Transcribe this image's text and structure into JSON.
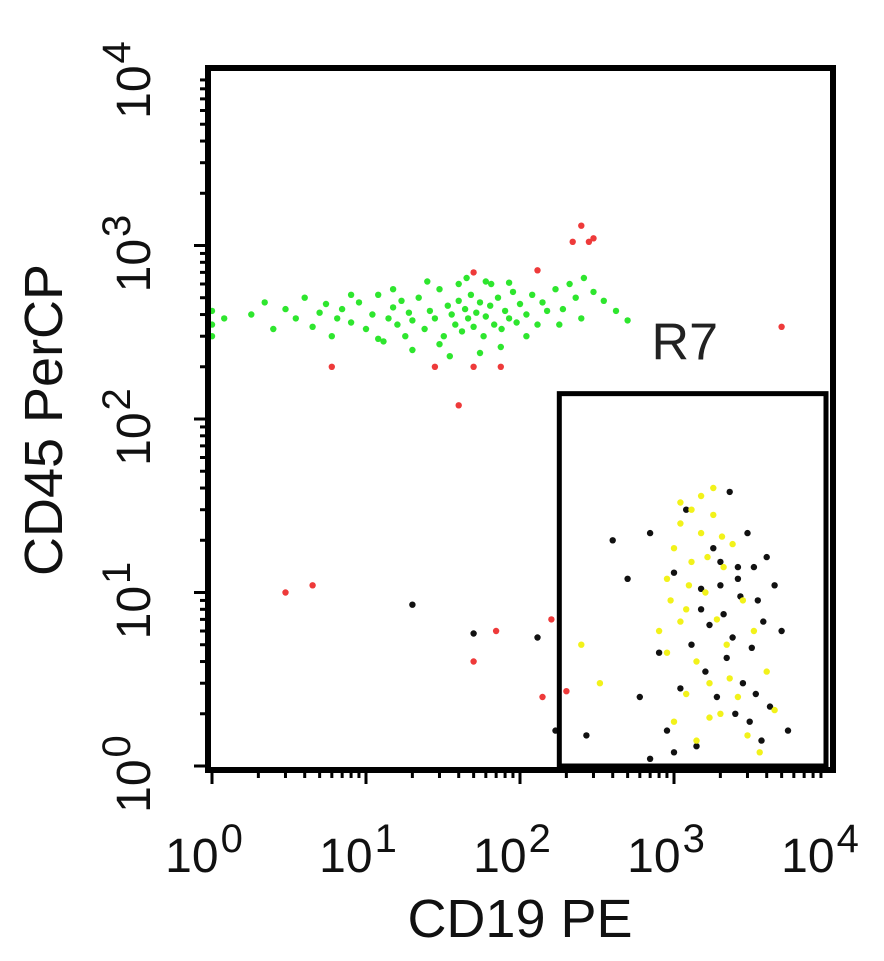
{
  "chart_data": {
    "type": "scatter",
    "xlabel": "CD19 PE",
    "ylabel": "CD45 PerCP",
    "x_scale": "log",
    "y_scale": "log",
    "xlim": [
      1,
      10000
    ],
    "ylim": [
      1,
      10000
    ],
    "x_tick_labels": [
      {
        "value": 1,
        "base": "10",
        "exp": "0"
      },
      {
        "value": 10,
        "base": "10",
        "exp": "1"
      },
      {
        "value": 100,
        "base": "10",
        "exp": "2"
      },
      {
        "value": 1000,
        "base": "10",
        "exp": "3"
      },
      {
        "value": 10000,
        "base": "10",
        "exp": "4"
      }
    ],
    "y_tick_labels": [
      {
        "value": 1,
        "base": "10",
        "exp": "0"
      },
      {
        "value": 10,
        "base": "10",
        "exp": "1"
      },
      {
        "value": 100,
        "base": "10",
        "exp": "2"
      },
      {
        "value": 1000,
        "base": "10",
        "exp": "3"
      },
      {
        "value": 10000,
        "base": "10",
        "exp": "4"
      }
    ],
    "grid": false,
    "gate": {
      "label": "R7",
      "x": [
        180,
        10000
      ],
      "y": [
        1,
        140
      ]
    },
    "gate_label_pos": {
      "x": 1300,
      "y": 280
    },
    "series": [
      {
        "color": "#2ee62e",
        "points": [
          [
            1,
            350
          ],
          [
            1,
            420
          ],
          [
            1,
            300
          ],
          [
            1.2,
            380
          ],
          [
            1.8,
            400
          ],
          [
            2.2,
            470
          ],
          [
            2.5,
            330
          ],
          [
            3,
            430
          ],
          [
            3.5,
            380
          ],
          [
            4,
            500
          ],
          [
            4.5,
            340
          ],
          [
            5,
            410
          ],
          [
            5.5,
            460
          ],
          [
            6,
            300
          ],
          [
            6.5,
            380
          ],
          [
            7,
            430
          ],
          [
            8,
            360
          ],
          [
            9,
            470
          ],
          [
            10,
            330
          ],
          [
            11,
            400
          ],
          [
            12,
            520
          ],
          [
            13,
            280
          ],
          [
            14,
            380
          ],
          [
            15,
            440
          ],
          [
            16,
            350
          ],
          [
            17,
            480
          ],
          [
            18,
            300
          ],
          [
            19,
            410
          ],
          [
            20,
            370
          ],
          [
            22,
            500
          ],
          [
            24,
            330
          ],
          [
            26,
            420
          ],
          [
            28,
            380
          ],
          [
            30,
            560
          ],
          [
            32,
            300
          ],
          [
            34,
            450
          ],
          [
            36,
            400
          ],
          [
            38,
            350
          ],
          [
            40,
            480
          ],
          [
            42,
            320
          ],
          [
            44,
            430
          ],
          [
            46,
            380
          ],
          [
            48,
            520
          ],
          [
            50,
            340
          ],
          [
            52,
            410
          ],
          [
            55,
            470
          ],
          [
            58,
            300
          ],
          [
            60,
            390
          ],
          [
            64,
            450
          ],
          [
            68,
            350
          ],
          [
            72,
            500
          ],
          [
            76,
            330
          ],
          [
            80,
            420
          ],
          [
            85,
            380
          ],
          [
            90,
            540
          ],
          [
            95,
            360
          ],
          [
            100,
            460
          ],
          [
            110,
            400
          ],
          [
            120,
            520
          ],
          [
            130,
            350
          ],
          [
            140,
            470
          ],
          [
            150,
            420
          ],
          [
            170,
            560
          ],
          [
            190,
            430
          ],
          [
            210,
            600
          ],
          [
            230,
            500
          ],
          [
            260,
            650
          ],
          [
            300,
            540
          ],
          [
            350,
            480
          ],
          [
            420,
            420
          ],
          [
            500,
            370
          ],
          [
            20,
            250
          ],
          [
            25,
            620
          ],
          [
            35,
            230
          ],
          [
            45,
            650
          ],
          [
            55,
            240
          ],
          [
            65,
            600
          ],
          [
            75,
            260
          ],
          [
            85,
            610
          ],
          [
            30,
            270
          ],
          [
            40,
            600
          ],
          [
            60,
            620
          ],
          [
            12,
            290
          ],
          [
            8,
            520
          ],
          [
            15,
            560
          ],
          [
            110,
            300
          ],
          [
            180,
            350
          ],
          [
            250,
            380
          ]
        ]
      },
      {
        "color": "#ee3a3a",
        "points": [
          [
            250,
            1300
          ],
          [
            280,
            1050
          ],
          [
            300,
            1100
          ],
          [
            220,
            1050
          ],
          [
            6,
            200
          ],
          [
            28,
            200
          ],
          [
            40,
            120
          ],
          [
            50,
            200
          ],
          [
            75,
            200
          ],
          [
            3,
            10
          ],
          [
            4.5,
            11
          ],
          [
            50,
            4
          ],
          [
            70,
            6
          ],
          [
            160,
            7
          ],
          [
            140,
            2.5
          ],
          [
            200,
            2.7
          ],
          [
            5000,
            340
          ],
          [
            50,
            700
          ],
          [
            130,
            720
          ]
        ]
      },
      {
        "color": "#111111",
        "points": [
          [
            20,
            8.5
          ],
          [
            50,
            5.8
          ],
          [
            130,
            5.5
          ],
          [
            170,
            1.6
          ],
          [
            270,
            1.5
          ],
          [
            400,
            20
          ],
          [
            500,
            12
          ],
          [
            700,
            22
          ],
          [
            1000,
            13
          ],
          [
            1200,
            30
          ],
          [
            1500,
            8
          ],
          [
            1800,
            18
          ],
          [
            2000,
            11
          ],
          [
            2300,
            38
          ],
          [
            2600,
            14
          ],
          [
            3000,
            22
          ],
          [
            3500,
            9
          ],
          [
            4000,
            16
          ],
          [
            5000,
            6
          ],
          [
            1300,
            5
          ],
          [
            1600,
            3.5
          ],
          [
            1900,
            2.5
          ],
          [
            2200,
            4.2
          ],
          [
            2500,
            2
          ],
          [
            2800,
            3
          ],
          [
            3100,
            1.8
          ],
          [
            3400,
            2.6
          ],
          [
            3700,
            1.4
          ],
          [
            4200,
            2.2
          ],
          [
            900,
            1.6
          ],
          [
            1100,
            2.8
          ],
          [
            1400,
            1.3
          ],
          [
            1700,
            6.5
          ],
          [
            2100,
            7.5
          ],
          [
            2400,
            5.5
          ],
          [
            2700,
            9.5
          ],
          [
            3200,
            4.8
          ],
          [
            3800,
            6.8
          ],
          [
            600,
            2.5
          ],
          [
            800,
            4.5
          ],
          [
            1000,
            1.2
          ],
          [
            1500,
            10.5
          ],
          [
            2000,
            15
          ],
          [
            2600,
            12
          ],
          [
            3300,
            14
          ],
          [
            4500,
            11
          ],
          [
            5500,
            1.6
          ],
          [
            700,
            1.1
          ]
        ]
      },
      {
        "color": "#f2f21a",
        "points": [
          [
            250,
            5
          ],
          [
            330,
            3
          ],
          [
            800,
            6
          ],
          [
            900,
            12
          ],
          [
            1000,
            18
          ],
          [
            1100,
            25
          ],
          [
            1200,
            8
          ],
          [
            1300,
            15
          ],
          [
            1400,
            4
          ],
          [
            1500,
            22
          ],
          [
            1600,
            10
          ],
          [
            1700,
            3
          ],
          [
            1800,
            28
          ],
          [
            1900,
            7
          ],
          [
            2000,
            2
          ],
          [
            2100,
            14
          ],
          [
            2200,
            5
          ],
          [
            2400,
            19
          ],
          [
            2600,
            2.5
          ],
          [
            2800,
            9
          ],
          [
            3000,
            1.5
          ],
          [
            3300,
            6
          ],
          [
            3600,
            1.2
          ],
          [
            4000,
            3.5
          ],
          [
            4500,
            2.1
          ],
          [
            1000,
            1.8
          ],
          [
            1200,
            2.6
          ],
          [
            1400,
            1.4
          ],
          [
            1700,
            1.9
          ],
          [
            2300,
            3.2
          ],
          [
            900,
            4.5
          ],
          [
            1100,
            6.8
          ],
          [
            1300,
            30
          ],
          [
            1500,
            36
          ],
          [
            1800,
            40
          ],
          [
            1100,
            33
          ],
          [
            950,
            9
          ],
          [
            1250,
            11
          ],
          [
            1650,
            16
          ],
          [
            2050,
            21
          ]
        ]
      }
    ]
  }
}
